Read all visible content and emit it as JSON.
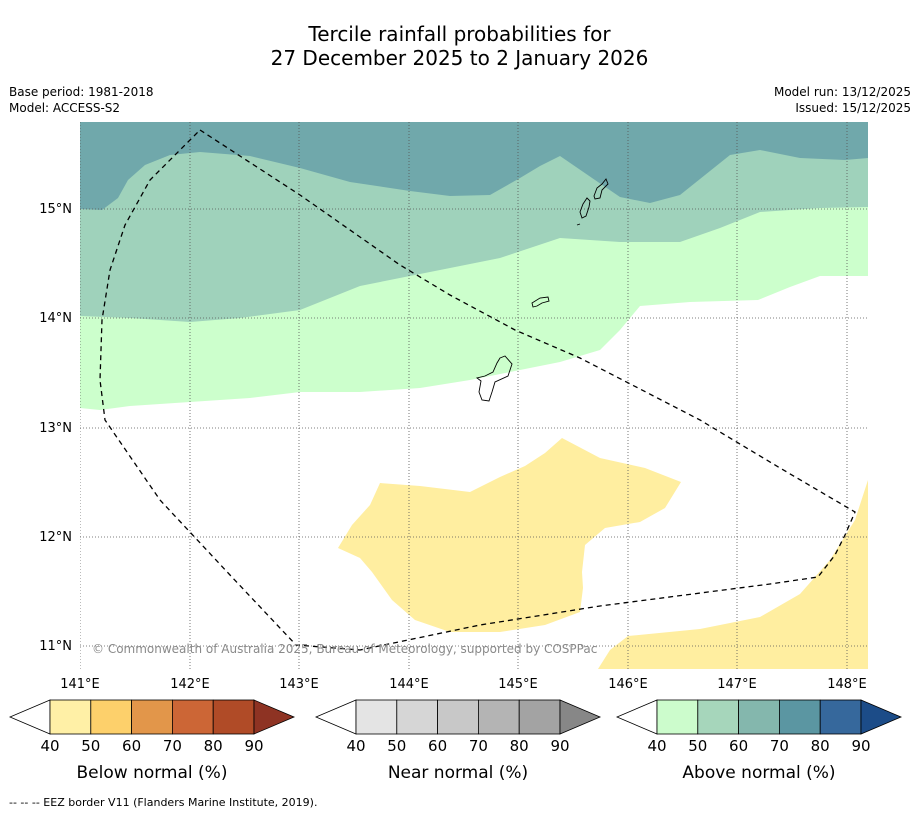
{
  "title_line1": "Tercile rainfall probabilities for",
  "title_line2": "27 December 2025 to 2 January 2026",
  "base_period": "Base period: 1981-2018",
  "model": "Model: ACCESS-S2",
  "model_run": "Model run: 13/12/2025",
  "issued": "Issued: 15/12/2025",
  "copyright": "© Commonwealth of Australia 2025, Bureau of Meteorology, supported by COSPPac",
  "lat_labels": [
    "15°N",
    "14°N",
    "13°N",
    "12°N",
    "11°N"
  ],
  "lon_labels": [
    "141°E",
    "142°E",
    "143°E",
    "144°E",
    "145°E",
    "146°E",
    "147°E",
    "148°E"
  ],
  "colorbars": [
    {
      "title": "Below normal (%)",
      "ticks": [
        "40",
        "50",
        "60",
        "70",
        "80",
        "90"
      ],
      "colors": [
        "#ffffff",
        "#fff0a6",
        "#fdd06b",
        "#e2964a",
        "#cc6636",
        "#b04b27",
        "#8e3323"
      ]
    },
    {
      "title": "Near normal (%)",
      "ticks": [
        "40",
        "50",
        "60",
        "70",
        "80",
        "90"
      ],
      "colors": [
        "#ffffff",
        "#e4e4e4",
        "#d6d6d6",
        "#c8c8c8",
        "#b4b4b4",
        "#a3a3a3",
        "#878787"
      ]
    },
    {
      "title": "Above normal (%)",
      "ticks": [
        "40",
        "50",
        "60",
        "70",
        "80",
        "90"
      ],
      "colors": [
        "#ffffff",
        "#ccfccc",
        "#a6d6bb",
        "#84b7ad",
        "#5b96a2",
        "#36689c",
        "#1c4c88"
      ]
    }
  ],
  "footnote": "--  --  -- EEZ border V11 (Flanders Marine Institute, 2019).",
  "colors": {
    "above_50_60": "#9fd2bb",
    "above_60_70": "#70a8ab",
    "above_40_50": "#ccffcc",
    "below_40_50": "#ffeea0"
  }
}
